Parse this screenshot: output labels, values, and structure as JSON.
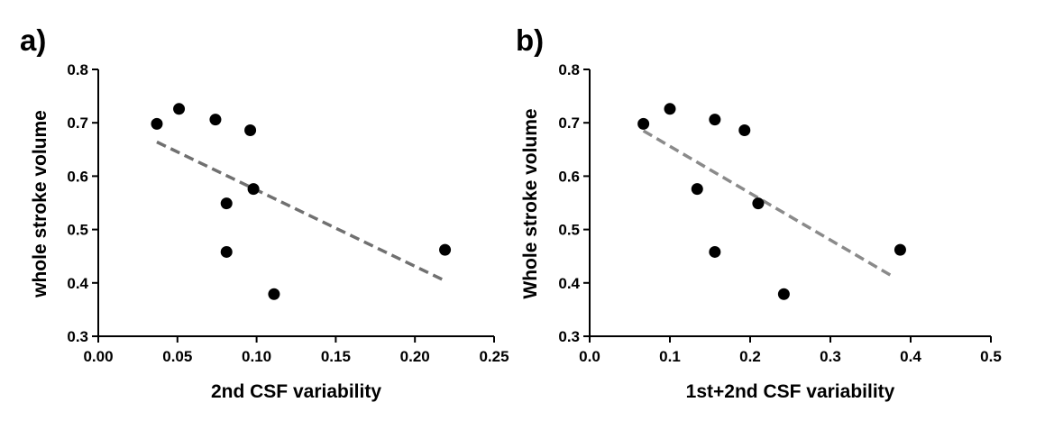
{
  "chart_data": [
    {
      "panel_label": "a)",
      "type": "scatter",
      "xlabel": "2nd CSF variability",
      "ylabel": "whole stroke volume",
      "xlim": [
        0.0,
        0.25
      ],
      "ylim": [
        0.3,
        0.8
      ],
      "xticks": [
        "0.00",
        "0.05",
        "0.10",
        "0.15",
        "0.20",
        "0.25"
      ],
      "yticks": [
        "0.3",
        "0.4",
        "0.5",
        "0.6",
        "0.7",
        "0.8"
      ],
      "x": [
        0.037,
        0.051,
        0.074,
        0.081,
        0.081,
        0.096,
        0.098,
        0.111,
        0.219
      ],
      "y": [
        0.698,
        0.726,
        0.706,
        0.549,
        0.458,
        0.686,
        0.576,
        0.379,
        0.462
      ],
      "fit_line": {
        "x": [
          0.037,
          0.219
        ],
        "y": [
          0.664,
          0.404
        ],
        "style": "dashed",
        "color": "#707070"
      },
      "marker_color": "#000000"
    },
    {
      "panel_label": "b)",
      "type": "scatter",
      "xlabel": "1st+2nd CSF variability",
      "ylabel": "Whole stroke volume",
      "xlim": [
        0.0,
        0.5
      ],
      "ylim": [
        0.3,
        0.8
      ],
      "xticks": [
        "0.0",
        "0.1",
        "0.2",
        "0.3",
        "0.4",
        "0.5"
      ],
      "yticks": [
        "0.3",
        "0.4",
        "0.5",
        "0.6",
        "0.7",
        "0.8"
      ],
      "x": [
        0.067,
        0.1,
        0.134,
        0.156,
        0.156,
        0.193,
        0.21,
        0.242,
        0.387
      ],
      "y": [
        0.698,
        0.726,
        0.576,
        0.706,
        0.458,
        0.686,
        0.549,
        0.379,
        0.462
      ],
      "fit_line": {
        "x": [
          0.067,
          0.38
        ],
        "y": [
          0.685,
          0.41
        ],
        "style": "dashed",
        "color": "#8a8a8a"
      },
      "marker_color": "#000000"
    }
  ]
}
